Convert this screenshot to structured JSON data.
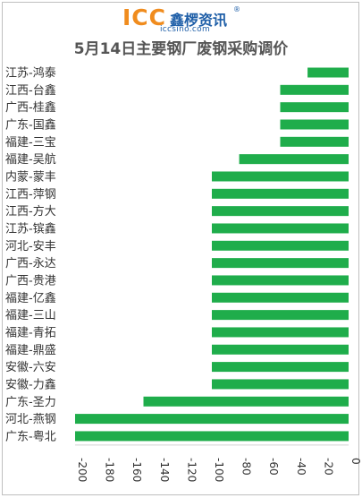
{
  "logo": {
    "brand": "ICC",
    "name": "鑫椤资讯",
    "registered": "®",
    "url": "iccsino.com"
  },
  "chart_data": {
    "type": "bar",
    "orientation": "horizontal",
    "title": "5月14日主要钢厂废钢采购调价",
    "categories": [
      "江苏-鸿泰",
      "江西-台鑫",
      "广西-桂鑫",
      "广东-国鑫",
      "福建-三宝",
      "福建-吴航",
      "内蒙-蒙丰",
      "江西-萍钢",
      "江西-方大",
      "江苏-镔鑫",
      "河北-安丰",
      "广西-永达",
      "广西-贵港",
      "福建-亿鑫",
      "福建-三山",
      "福建-青拓",
      "福建-鼎盛",
      "安徽-六安",
      "安徽-力鑫",
      "广东-圣力",
      "河北-燕钢",
      "广东-粤北"
    ],
    "values": [
      -30,
      -50,
      -50,
      -50,
      -50,
      -80,
      -100,
      -100,
      -100,
      -100,
      -100,
      -100,
      -100,
      -100,
      -100,
      -100,
      -100,
      -100,
      -100,
      -150,
      -200,
      -200
    ],
    "xlim": [
      -200,
      0
    ],
    "xticks": [
      -200,
      -180,
      -160,
      -140,
      -120,
      -100,
      -80,
      -60,
      -40,
      -20,
      0
    ],
    "bar_color": "#1fad4b",
    "grid": false
  }
}
